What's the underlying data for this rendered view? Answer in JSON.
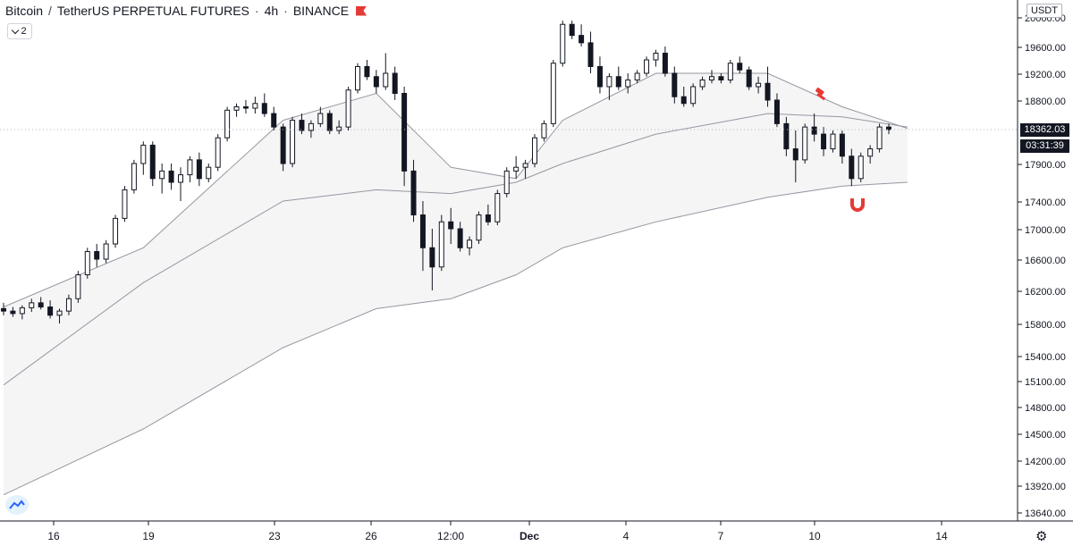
{
  "header": {
    "base": "Bitcoin",
    "separator": "/",
    "quote": "TetherUS PERPETUAL FUTURES",
    "interval": "4h",
    "exchange": "BINANCE",
    "flag_color": "#e53935"
  },
  "collapse_button": {
    "count": "2",
    "icon": "chevron-down-icon"
  },
  "currency_label": "USDT",
  "last_price": "18362.03",
  "countdown": "03:31:39",
  "settings_icon": "gear-icon",
  "logo_icon": "tradingview-logo-icon",
  "markers": {
    "top_icon": "hammer-icon",
    "bottom_icon": "magnet-icon",
    "color": "#e53935"
  },
  "chart_data": {
    "type": "candlestick",
    "price_axis": [
      "20000.00",
      "19600.00",
      "19200.00",
      "18800.00",
      "18362.03",
      "17900.00",
      "17400.00",
      "17000.00",
      "16600.00",
      "16200.00",
      "15800.00",
      "15400.00",
      "15100.00",
      "14800.00",
      "14500.00",
      "14200.00",
      "13920.00",
      "13640.00"
    ],
    "time_axis": [
      "16",
      "19",
      "23",
      "26",
      "12:00",
      "Dec",
      "4",
      "7",
      "10",
      "14"
    ],
    "time_axis_bold": [
      "Dec"
    ],
    "ylim": [
      13500,
      20150
    ],
    "candles": [
      [
        15980,
        16050,
        15900,
        15950
      ],
      [
        15950,
        16000,
        15880,
        15920
      ],
      [
        15920,
        16020,
        15850,
        15990
      ],
      [
        15990,
        16100,
        15940,
        16050
      ],
      [
        16050,
        16120,
        15970,
        16000
      ],
      [
        16000,
        16080,
        15860,
        15900
      ],
      [
        15900,
        15980,
        15800,
        15950
      ],
      [
        15950,
        16150,
        15900,
        16100
      ],
      [
        16100,
        16450,
        16050,
        16400
      ],
      [
        16400,
        16750,
        16350,
        16700
      ],
      [
        16700,
        16800,
        16500,
        16600
      ],
      [
        16600,
        16850,
        16550,
        16800
      ],
      [
        16800,
        17200,
        16750,
        17150
      ],
      [
        17150,
        17600,
        17100,
        17550
      ],
      [
        17550,
        17950,
        17500,
        17900
      ],
      [
        17900,
        18200,
        17750,
        18150
      ],
      [
        18150,
        18200,
        17600,
        17700
      ],
      [
        17700,
        17900,
        17500,
        17800
      ],
      [
        17800,
        17900,
        17550,
        17650
      ],
      [
        17650,
        17850,
        17400,
        17750
      ],
      [
        17750,
        18000,
        17650,
        17950
      ],
      [
        17950,
        18050,
        17600,
        17700
      ],
      [
        17700,
        17900,
        17650,
        17850
      ],
      [
        17850,
        18300,
        17800,
        18250
      ],
      [
        18250,
        18700,
        18200,
        18650
      ],
      [
        18650,
        18750,
        18550,
        18700
      ],
      [
        18700,
        18800,
        18600,
        18680
      ],
      [
        18680,
        18850,
        18600,
        18750
      ],
      [
        18750,
        18900,
        18550,
        18600
      ],
      [
        18600,
        18700,
        18350,
        18400
      ],
      [
        18400,
        18450,
        17800,
        17900
      ],
      [
        17900,
        18550,
        17850,
        18500
      ],
      [
        18500,
        18600,
        18300,
        18350
      ],
      [
        18350,
        18500,
        18250,
        18450
      ],
      [
        18450,
        18700,
        18400,
        18600
      ],
      [
        18600,
        18650,
        18300,
        18350
      ],
      [
        18350,
        18500,
        18300,
        18400
      ],
      [
        18400,
        19000,
        18350,
        18950
      ],
      [
        18950,
        19350,
        18900,
        19300
      ],
      [
        19300,
        19400,
        19100,
        19150
      ],
      [
        19150,
        19250,
        18900,
        19000
      ],
      [
        19000,
        19500,
        18950,
        19200
      ],
      [
        19200,
        19300,
        18800,
        18900
      ],
      [
        18900,
        19000,
        17600,
        17800
      ],
      [
        17800,
        17950,
        17100,
        17200
      ],
      [
        17200,
        17400,
        16450,
        16750
      ],
      [
        16750,
        17000,
        16200,
        16500
      ],
      [
        16500,
        17200,
        16450,
        17100
      ],
      [
        17100,
        17300,
        16800,
        17000
      ],
      [
        17000,
        17100,
        16700,
        16750
      ],
      [
        16750,
        16900,
        16650,
        16850
      ],
      [
        16850,
        17250,
        16800,
        17200
      ],
      [
        17200,
        17350,
        17050,
        17100
      ],
      [
        17100,
        17550,
        17050,
        17500
      ],
      [
        17500,
        17850,
        17450,
        17800
      ],
      [
        17800,
        18000,
        17700,
        17850
      ],
      [
        17850,
        17950,
        17700,
        17900
      ],
      [
        17900,
        18300,
        17850,
        18250
      ],
      [
        18250,
        18500,
        18200,
        18450
      ],
      [
        18450,
        19400,
        18400,
        19350
      ],
      [
        19350,
        19950,
        19300,
        19900
      ],
      [
        19900,
        20050,
        19700,
        19750
      ],
      [
        19750,
        19900,
        19600,
        19650
      ],
      [
        19650,
        19800,
        19200,
        19300
      ],
      [
        19300,
        19450,
        18900,
        19000
      ],
      [
        19000,
        19200,
        18800,
        19150
      ],
      [
        19150,
        19300,
        18950,
        19000
      ],
      [
        19000,
        19200,
        18900,
        19100
      ],
      [
        19100,
        19250,
        19050,
        19200
      ],
      [
        19200,
        19450,
        19150,
        19400
      ],
      [
        19400,
        19550,
        19300,
        19500
      ],
      [
        19500,
        19600,
        19150,
        19200
      ],
      [
        19200,
        19300,
        18750,
        18850
      ],
      [
        18850,
        19000,
        18700,
        18750
      ],
      [
        18750,
        19050,
        18700,
        19000
      ],
      [
        19000,
        19150,
        18950,
        19100
      ],
      [
        19100,
        19250,
        19050,
        19150
      ],
      [
        19150,
        19200,
        19050,
        19100
      ],
      [
        19100,
        19400,
        19050,
        19350
      ],
      [
        19350,
        19450,
        19200,
        19250
      ],
      [
        19250,
        19300,
        18950,
        19000
      ],
      [
        19000,
        19150,
        18900,
        19050
      ],
      [
        19050,
        19300,
        18700,
        18800
      ],
      [
        18800,
        18900,
        18400,
        18450
      ],
      [
        18450,
        18550,
        18000,
        18100
      ],
      [
        18100,
        18350,
        17650,
        17950
      ],
      [
        17950,
        18450,
        17900,
        18400
      ],
      [
        18400,
        18600,
        18200,
        18300
      ],
      [
        18300,
        18400,
        18000,
        18100
      ],
      [
        18100,
        18350,
        18050,
        18300
      ],
      [
        18300,
        18350,
        17900,
        18000
      ],
      [
        18000,
        18100,
        17600,
        17700
      ],
      [
        17700,
        18050,
        17650,
        18000
      ],
      [
        18000,
        18150,
        17900,
        18100
      ],
      [
        18100,
        18450,
        18050,
        18400
      ],
      [
        18400,
        18450,
        18300,
        18362
      ]
    ],
    "moving_averages": [
      {
        "color": "#9598a1",
        "points": [
          [
            0,
            16000
          ],
          [
            15,
            16750
          ],
          [
            30,
            18500
          ],
          [
            40,
            18900
          ],
          [
            48,
            17850
          ],
          [
            55,
            17700
          ],
          [
            60,
            18500
          ],
          [
            70,
            19200
          ],
          [
            82,
            19200
          ],
          [
            90,
            18700
          ],
          [
            97,
            18380
          ]
        ]
      },
      {
        "color": "#9598a1",
        "points": [
          [
            0,
            15050
          ],
          [
            15,
            16300
          ],
          [
            30,
            17400
          ],
          [
            40,
            17550
          ],
          [
            48,
            17500
          ],
          [
            55,
            17650
          ],
          [
            60,
            17900
          ],
          [
            70,
            18300
          ],
          [
            82,
            18600
          ],
          [
            90,
            18550
          ],
          [
            97,
            18400
          ]
        ]
      },
      {
        "color": "#9598a1",
        "points": [
          [
            0,
            13820
          ],
          [
            15,
            14550
          ],
          [
            30,
            15500
          ],
          [
            40,
            15980
          ],
          [
            48,
            16100
          ],
          [
            55,
            16400
          ],
          [
            60,
            16750
          ],
          [
            70,
            17100
          ],
          [
            82,
            17450
          ],
          [
            90,
            17600
          ],
          [
            97,
            17650
          ]
        ]
      }
    ]
  }
}
